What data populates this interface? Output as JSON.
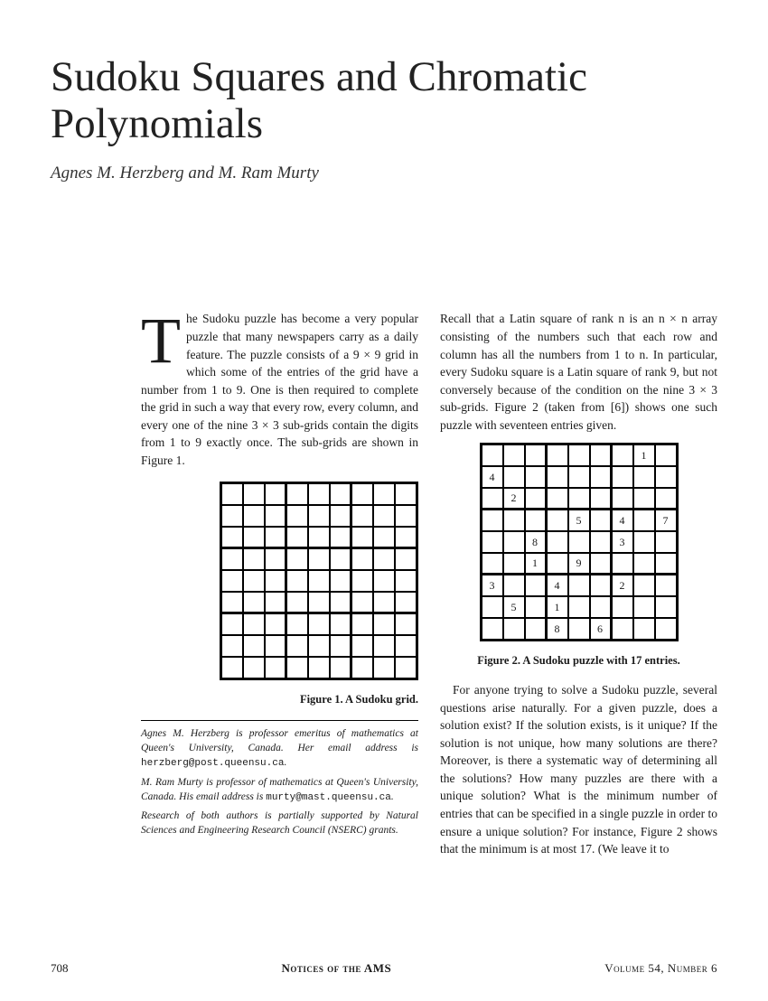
{
  "title": "Sudoku Squares and Chromatic Polynomials",
  "authors": "Agnes M. Herzberg and M. Ram Murty",
  "left": {
    "p1_a": "he Sudoku puzzle has become a very popular puzzle that many newspapers carry as a daily feature. The puzzle consists of a 9 × 9 grid in which some of the entries of the grid have a number from 1 to 9. One is then required to complete the grid in such a way that every row, every column, and every one of the nine 3 × 3 sub-grids contain the digits from 1 to 9 exactly once. The sub-grids are shown in Figure 1.",
    "fig1_caption": "Figure 1. A Sudoku grid.",
    "fn1_a": "Agnes M. Herzberg is professor emeritus of mathematics at Queen's University, Canada. Her email address is ",
    "fn1_email": "herzberg@post.queensu.ca",
    "fn2_a": "M. Ram Murty is professor of mathematics at Queen's University, Canada. His email address is ",
    "fn2_email": "murty@mast.queensu.ca",
    "fn3": "Research of both authors is partially supported by Natural Sciences and Engineering Research Council (NSERC) grants."
  },
  "right": {
    "p1": "Recall that a Latin square of rank n is an n × n array consisting of the numbers such that each row and column has all the numbers from 1 to n. In particular, every Sudoku square is a Latin square of rank 9, but not conversely because of the condition on the nine 3 × 3 sub-grids. Figure 2 (taken from [6]) shows one such puzzle with seventeen entries given.",
    "fig2_caption": "Figure 2. A Sudoku puzzle with 17 entries.",
    "p2": "For anyone trying to solve a Sudoku puzzle, several questions arise naturally. For a given puzzle, does a solution exist? If the solution exists, is it unique? If the solution is not unique, how many solutions are there? Moreover, is there a systematic way of determining all the solutions? How many puzzles are there with a unique solution? What is the minimum number of entries that can be specified in a single puzzle in order to ensure a unique solution? For instance, Figure 2 shows that the minimum is at most 17. (We leave it to"
  },
  "grid2": [
    [
      "",
      "",
      "",
      "",
      "",
      "",
      "",
      "1",
      ""
    ],
    [
      "4",
      "",
      "",
      "",
      "",
      "",
      "",
      "",
      ""
    ],
    [
      "",
      "2",
      "",
      "",
      "",
      "",
      "",
      "",
      ""
    ],
    [
      "",
      "",
      "",
      "",
      "5",
      "",
      "4",
      "",
      "7"
    ],
    [
      "",
      "",
      "8",
      "",
      "",
      "",
      "3",
      "",
      ""
    ],
    [
      "",
      "",
      "1",
      "",
      "9",
      "",
      "",
      "",
      ""
    ],
    [
      "3",
      "",
      "",
      "4",
      "",
      "",
      "2",
      "",
      ""
    ],
    [
      "",
      "5",
      "",
      "1",
      "",
      "",
      "",
      "",
      ""
    ],
    [
      "",
      "",
      "",
      "8",
      "",
      "6",
      "",
      "",
      ""
    ]
  ],
  "footer": {
    "page": "708",
    "journal": "Notices of the AMS",
    "vol": "Volume 54, Number 6"
  },
  "style": {
    "title_fontsize": 47,
    "body_fontsize": 13.5,
    "cell_size": 24,
    "text_color": "#1a1a1a",
    "bg_color": "#ffffff",
    "border_color": "#000000"
  }
}
